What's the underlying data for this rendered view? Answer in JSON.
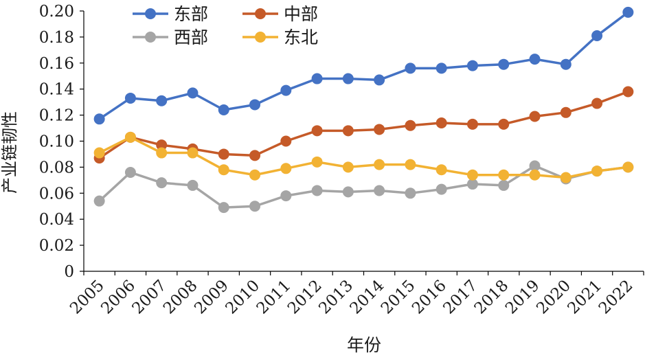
{
  "chart_data": {
    "type": "line",
    "title": "",
    "xlabel": "年份",
    "ylabel": "产业链韧性",
    "ylim": [
      0,
      0.2
    ],
    "yticks": [
      "0",
      "0.02",
      "0.04",
      "0.06",
      "0.08",
      "0.10",
      "0.12",
      "0.14",
      "0.16",
      "0.18",
      "0.20"
    ],
    "categories": [
      "2005",
      "2006",
      "2007",
      "2008",
      "2009",
      "2010",
      "2011",
      "2012",
      "2013",
      "2014",
      "2015",
      "2016",
      "2017",
      "2018",
      "2019",
      "2020",
      "2021",
      "2022"
    ],
    "grid": false,
    "legend_position": "top-left",
    "series": [
      {
        "name": "东部",
        "color": "#4472C4",
        "values": [
          0.117,
          0.133,
          0.131,
          0.137,
          0.124,
          0.128,
          0.139,
          0.148,
          0.148,
          0.147,
          0.156,
          0.156,
          0.158,
          0.159,
          0.163,
          0.159,
          0.181,
          0.199
        ]
      },
      {
        "name": "中部",
        "color": "#C55A28",
        "values": [
          0.087,
          0.103,
          0.097,
          0.094,
          0.09,
          0.089,
          0.1,
          0.108,
          0.108,
          0.109,
          0.112,
          0.114,
          0.113,
          0.113,
          0.119,
          0.122,
          0.129,
          0.138
        ]
      },
      {
        "name": "西部",
        "color": "#A5A5A5",
        "values": [
          0.054,
          0.076,
          0.068,
          0.066,
          0.049,
          0.05,
          0.058,
          0.062,
          0.061,
          0.062,
          0.06,
          0.063,
          0.067,
          0.066,
          0.081,
          0.071,
          0.077,
          0.08
        ]
      },
      {
        "name": "东北",
        "color": "#F2B233",
        "values": [
          0.091,
          0.103,
          0.091,
          0.091,
          0.078,
          0.074,
          0.079,
          0.084,
          0.08,
          0.082,
          0.082,
          0.078,
          0.074,
          0.074,
          0.074,
          0.072,
          0.077,
          0.08
        ]
      }
    ]
  }
}
